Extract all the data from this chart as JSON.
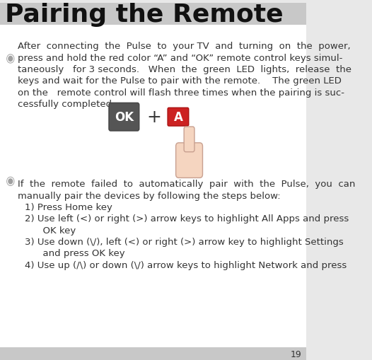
{
  "title": "Pairing the Remote",
  "title_fontsize": 26,
  "title_bg_color": "#c8c8c8",
  "page_bg_color": "#e8e8e8",
  "content_bg_color": "#ffffff",
  "page_number": "19",
  "bullet_color": "#a0a0a0",
  "text_color": "#333333",
  "paragraph1": "After  connecting  the  Pulse  to  your TV  and  turning  on  the  power,\npress and hold the red color “A” and “OK” remote control keys simul-\ntaneously   for 3 seconds.   When  the  green  LED  lights,  release  the\nkeys and wait for the Pulse to pair with the remote.    The green LED\non the   remote control will flash three times when the pairing is suc-\ncessfully completed.",
  "paragraph2": "If  the  remote  failed  to  automatically  pair  with  the  Pulse,  you  can\nmanually pair the devices by following the steps below:\n   1) Press Home key\n   2) Use left (<) or right (>) arrow keys to highlight All Apps and press\n         OK key\n   3) Use down (\\/ ), left (<) or right (>) arrow key to highlight Settings\n         and press OK key\n   4) Use up (/\\) or down (\\/) arrow keys to highlight Network and press",
  "ok_button_color": "#555555",
  "ok_text_color": "#ffffff",
  "a_button_color": "#cc2222",
  "a_text_color": "#ffffff",
  "plus_text": "+",
  "font_size_body": 9.5
}
